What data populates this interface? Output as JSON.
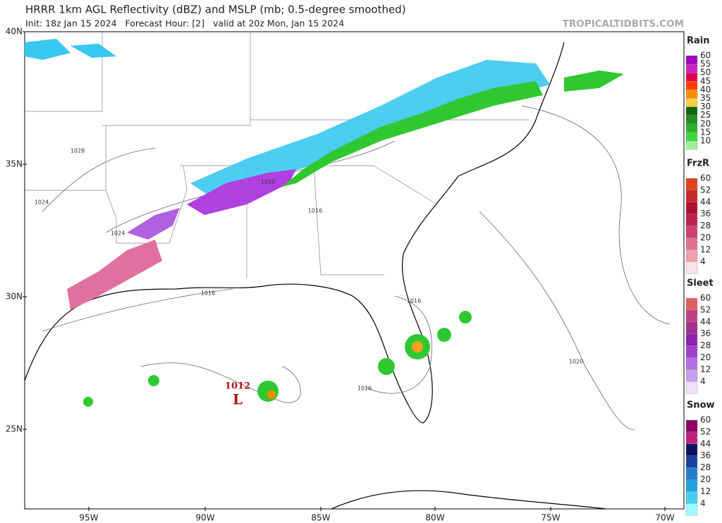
{
  "header": {
    "title": "HRRR 1km AGL Reflectivity (dBZ) and MSLP (mb; 0.5-degree smoothed)",
    "subtitle": "Init: 18z Jan 15 2024   Forecast Hour: [2]   valid at 20z Mon, Jan 15 2024",
    "source": "TROPICALTIDBITS.COM"
  },
  "map": {
    "lat_labels": [
      "40N",
      "35N",
      "30N",
      "25N"
    ],
    "lon_labels": [
      "95W",
      "90W",
      "85W",
      "80W",
      "75W",
      "70W"
    ],
    "isobar_labels": [
      "1028",
      "1024",
      "1024",
      "1020",
      "1016",
      "1016",
      "1016",
      "1016",
      "1020"
    ],
    "low": {
      "pressure": "1012",
      "symbol": "L"
    }
  },
  "legend": [
    {
      "title": "Rain",
      "items": [
        {
          "label": "60",
          "color": "#a000c0"
        },
        {
          "label": "55",
          "color": "#d020c8"
        },
        {
          "label": "50",
          "color": "#e00050"
        },
        {
          "label": "45",
          "color": "#ff3a00"
        },
        {
          "label": "40",
          "color": "#ff8c00"
        },
        {
          "label": "35",
          "color": "#ffd040"
        },
        {
          "label": "30",
          "color": "#146414"
        },
        {
          "label": "25",
          "color": "#1f8f1f"
        },
        {
          "label": "20",
          "color": "#28b428"
        },
        {
          "label": "15",
          "color": "#3cd83c"
        },
        {
          "label": "10",
          "color": "#9cf09c"
        }
      ]
    },
    {
      "title": "FrzR",
      "items": [
        {
          "label": "60",
          "color": "#e04020"
        },
        {
          "label": "52",
          "color": "#c82828"
        },
        {
          "label": "44",
          "color": "#b01030"
        },
        {
          "label": "36",
          "color": "#c02050"
        },
        {
          "label": "28",
          "color": "#d04070"
        },
        {
          "label": "20",
          "color": "#e07090"
        },
        {
          "label": "12",
          "color": "#f0a0b0"
        },
        {
          "label": "4",
          "color": "#ffe0e8"
        }
      ]
    },
    {
      "title": "Sleet",
      "items": [
        {
          "label": "60",
          "color": "#e06060"
        },
        {
          "label": "52",
          "color": "#c04080"
        },
        {
          "label": "44",
          "color": "#a03090"
        },
        {
          "label": "36",
          "color": "#9020b0"
        },
        {
          "label": "28",
          "color": "#a040d0"
        },
        {
          "label": "20",
          "color": "#b070e0"
        },
        {
          "label": "12",
          "color": "#c8a0f0"
        },
        {
          "label": "4",
          "color": "#eee0ff"
        }
      ]
    },
    {
      "title": "Snow",
      "items": [
        {
          "label": "60",
          "color": "#900060"
        },
        {
          "label": "52",
          "color": "#c02080"
        },
        {
          "label": "44",
          "color": "#101060"
        },
        {
          "label": "36",
          "color": "#1840a0"
        },
        {
          "label": "28",
          "color": "#2080d0"
        },
        {
          "label": "20",
          "color": "#20a0e0"
        },
        {
          "label": "12",
          "color": "#40d0f0"
        },
        {
          "label": "4",
          "color": "#a0f8ff"
        }
      ]
    }
  ]
}
